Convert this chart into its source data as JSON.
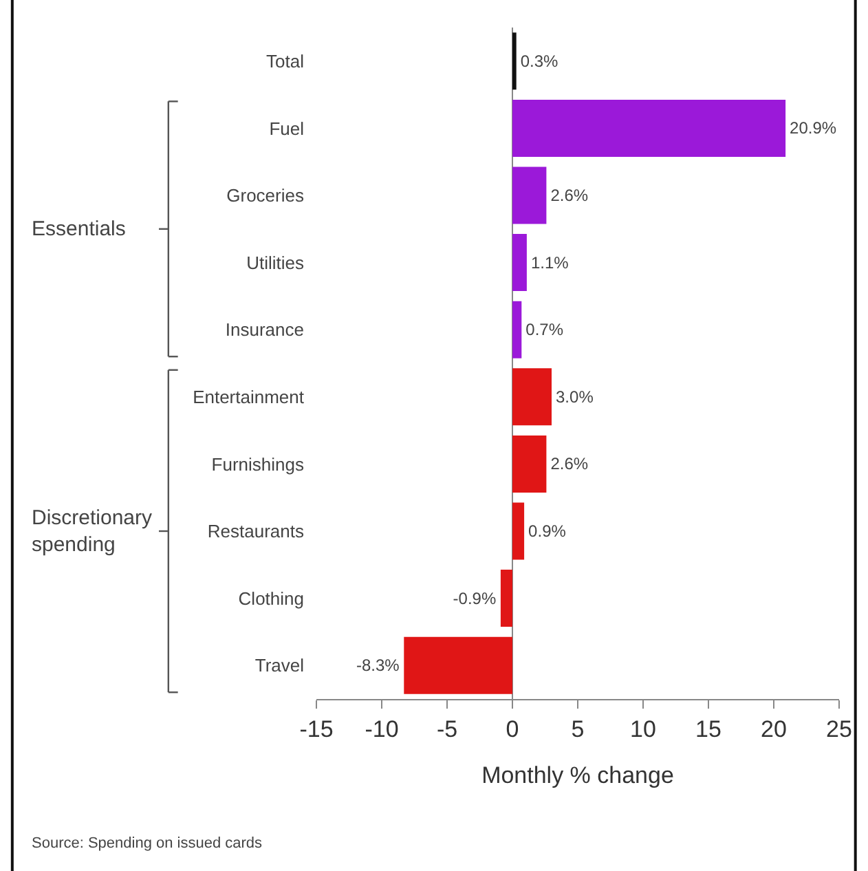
{
  "chart_data": {
    "type": "bar",
    "orientation": "horizontal",
    "categories": [
      "Total",
      "Fuel",
      "Groceries",
      "Utilities",
      "Insurance",
      "Entertainment",
      "Furnishings",
      "Restaurants",
      "Clothing",
      "Travel"
    ],
    "values": [
      0.3,
      20.9,
      2.6,
      1.1,
      0.7,
      3.0,
      2.6,
      0.9,
      -0.9,
      -8.3
    ],
    "value_labels": [
      "0.3%",
      "20.9%",
      "2.6%",
      "1.1%",
      "0.7%",
      "3.0%",
      "2.6%",
      "0.9%",
      "-0.9%",
      "-8.3%"
    ],
    "colors": [
      "#111111",
      "#9b19d9",
      "#9b19d9",
      "#9b19d9",
      "#9b19d9",
      "#e01616",
      "#e01616",
      "#e01616",
      "#e01616",
      "#e01616"
    ],
    "xlim": [
      -15,
      25
    ],
    "xticks": [
      -15,
      -10,
      -5,
      0,
      5,
      10,
      15,
      20,
      25
    ],
    "xlabel": "Monthly % change",
    "legend": false,
    "annotations": [
      "Essentials",
      "Discretionary\nspending",
      "Source: Spending on issued cards"
    ]
  }
}
